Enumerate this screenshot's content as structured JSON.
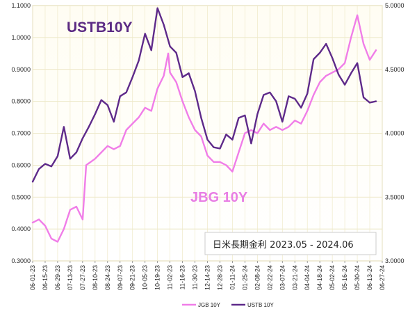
{
  "chart_data": {
    "type": "line",
    "title": "日米長期金利 2023.05 - 2024.06",
    "labels": {
      "ustb": "USTB10Y",
      "jgb": "JBG 10Y"
    },
    "left_axis": {
      "min": 0.3,
      "max": 1.1,
      "ticks": [
        "0.3000",
        "0.4000",
        "0.5000",
        "0.6000",
        "0.7000",
        "0.8000",
        "0.9000",
        "1.0000",
        "1.1000"
      ]
    },
    "right_axis": {
      "min": 3.0,
      "max": 5.0,
      "ticks": [
        "3.0000",
        "3.5000",
        "4.0000",
        "4.5000",
        "5.0000"
      ]
    },
    "grid": true,
    "legend_position": "bottom",
    "x_ticks": [
      "06-01-23",
      "06-15-23",
      "06-29-23",
      "07-13-23",
      "07-27-23",
      "08-10-23",
      "08-24-23",
      "09-07-23",
      "09-21-23",
      "10-05-23",
      "10-19-23",
      "11-02-23",
      "11-16-23",
      "11-30-23",
      "12-14-23",
      "12-28-23",
      "01-11-24",
      "01-25-24",
      "02-08-24",
      "02-22-24",
      "03-07-24",
      "03-21-24",
      "04-04-24",
      "04-18-24",
      "05-02-24",
      "05-16-24",
      "05-30-24",
      "06-13-24",
      "06-27-24"
    ],
    "series": [
      {
        "name": "JGB 10Y",
        "axis": "left",
        "color": "#f07de8",
        "points": [
          [
            "06-01-23",
            0.42
          ],
          [
            "06-08-23",
            0.43
          ],
          [
            "06-15-23",
            0.41
          ],
          [
            "06-22-23",
            0.37
          ],
          [
            "06-29-23",
            0.36
          ],
          [
            "07-06-23",
            0.4
          ],
          [
            "07-13-23",
            0.46
          ],
          [
            "07-20-23",
            0.47
          ],
          [
            "07-27-23",
            0.43
          ],
          [
            "07-31-23",
            0.6
          ],
          [
            "08-10-23",
            0.62
          ],
          [
            "08-17-23",
            0.64
          ],
          [
            "08-24-23",
            0.66
          ],
          [
            "08-31-23",
            0.65
          ],
          [
            "09-07-23",
            0.66
          ],
          [
            "09-14-23",
            0.71
          ],
          [
            "09-21-23",
            0.73
          ],
          [
            "09-28-23",
            0.75
          ],
          [
            "10-05-23",
            0.78
          ],
          [
            "10-12-23",
            0.77
          ],
          [
            "10-19-23",
            0.84
          ],
          [
            "10-26-23",
            0.88
          ],
          [
            "10-31-23",
            0.95
          ],
          [
            "11-02-23",
            0.89
          ],
          [
            "11-09-23",
            0.86
          ],
          [
            "11-16-23",
            0.8
          ],
          [
            "11-23-23",
            0.75
          ],
          [
            "11-30-23",
            0.71
          ],
          [
            "12-07-23",
            0.69
          ],
          [
            "12-14-23",
            0.63
          ],
          [
            "12-21-23",
            0.61
          ],
          [
            "12-28-23",
            0.61
          ],
          [
            "01-04-24",
            0.6
          ],
          [
            "01-11-24",
            0.58
          ],
          [
            "01-18-24",
            0.64
          ],
          [
            "01-25-24",
            0.7
          ],
          [
            "02-01-24",
            0.71
          ],
          [
            "02-08-24",
            0.7
          ],
          [
            "02-15-24",
            0.73
          ],
          [
            "02-22-24",
            0.71
          ],
          [
            "02-29-24",
            0.72
          ],
          [
            "03-07-24",
            0.71
          ],
          [
            "03-14-24",
            0.72
          ],
          [
            "03-21-24",
            0.74
          ],
          [
            "03-28-24",
            0.73
          ],
          [
            "04-04-24",
            0.77
          ],
          [
            "04-11-24",
            0.82
          ],
          [
            "04-18-24",
            0.86
          ],
          [
            "04-25-24",
            0.88
          ],
          [
            "05-02-24",
            0.89
          ],
          [
            "05-09-24",
            0.9
          ],
          [
            "05-16-24",
            0.92
          ],
          [
            "05-23-24",
            1.0
          ],
          [
            "05-30-24",
            1.07
          ],
          [
            "06-06-24",
            0.98
          ],
          [
            "06-13-24",
            0.93
          ],
          [
            "06-20-24",
            0.96
          ]
        ]
      },
      {
        "name": "USTB 10Y",
        "axis": "right",
        "color": "#5e2a8a",
        "points": [
          [
            "06-01-23",
            3.62
          ],
          [
            "06-08-23",
            3.72
          ],
          [
            "06-15-23",
            3.76
          ],
          [
            "06-22-23",
            3.74
          ],
          [
            "06-29-23",
            3.82
          ],
          [
            "07-06-23",
            4.05
          ],
          [
            "07-13-23",
            3.8
          ],
          [
            "07-20-23",
            3.85
          ],
          [
            "07-27-23",
            3.96
          ],
          [
            "08-03-23",
            4.05
          ],
          [
            "08-10-23",
            4.15
          ],
          [
            "08-17-23",
            4.26
          ],
          [
            "08-24-23",
            4.22
          ],
          [
            "08-31-23",
            4.09
          ],
          [
            "09-07-23",
            4.29
          ],
          [
            "09-14-23",
            4.32
          ],
          [
            "09-21-23",
            4.44
          ],
          [
            "09-28-23",
            4.57
          ],
          [
            "10-05-23",
            4.78
          ],
          [
            "10-12-23",
            4.65
          ],
          [
            "10-19-23",
            4.98
          ],
          [
            "10-26-23",
            4.85
          ],
          [
            "11-02-23",
            4.68
          ],
          [
            "11-09-23",
            4.63
          ],
          [
            "11-16-23",
            4.44
          ],
          [
            "11-23-23",
            4.47
          ],
          [
            "11-30-23",
            4.33
          ],
          [
            "12-07-23",
            4.12
          ],
          [
            "12-14-23",
            3.95
          ],
          [
            "12-21-23",
            3.89
          ],
          [
            "12-28-23",
            3.88
          ],
          [
            "01-04-24",
            3.99
          ],
          [
            "01-11-24",
            3.95
          ],
          [
            "01-18-24",
            4.12
          ],
          [
            "01-25-24",
            4.14
          ],
          [
            "02-01-24",
            3.92
          ],
          [
            "02-08-24",
            4.15
          ],
          [
            "02-15-24",
            4.3
          ],
          [
            "02-22-24",
            4.32
          ],
          [
            "02-29-24",
            4.25
          ],
          [
            "03-07-24",
            4.09
          ],
          [
            "03-14-24",
            4.29
          ],
          [
            "03-21-24",
            4.27
          ],
          [
            "03-28-24",
            4.2
          ],
          [
            "04-04-24",
            4.31
          ],
          [
            "04-11-24",
            4.58
          ],
          [
            "04-18-24",
            4.63
          ],
          [
            "04-25-24",
            4.7
          ],
          [
            "05-02-24",
            4.59
          ],
          [
            "05-09-24",
            4.46
          ],
          [
            "05-16-24",
            4.38
          ],
          [
            "05-23-24",
            4.47
          ],
          [
            "05-30-24",
            4.55
          ],
          [
            "06-06-24",
            4.28
          ],
          [
            "06-13-24",
            4.24
          ],
          [
            "06-20-24",
            4.25
          ]
        ]
      }
    ]
  }
}
